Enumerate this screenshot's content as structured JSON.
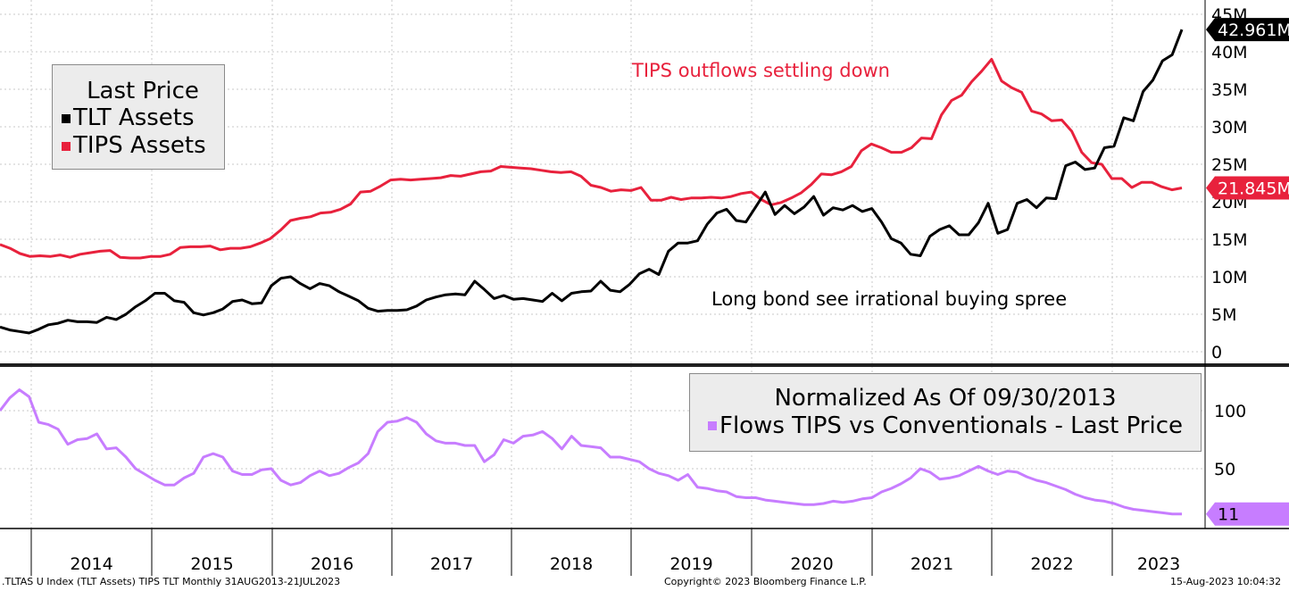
{
  "chart_data": [
    {
      "type": "line",
      "panel": "upper",
      "x_label_years": [
        "2014",
        "2015",
        "2016",
        "2017",
        "2018",
        "2019",
        "2020",
        "2021",
        "2022",
        "2023"
      ],
      "y_ticks": [
        "0",
        "5M",
        "10M",
        "15M",
        "20M",
        "25M",
        "30M",
        "35M",
        "40M",
        "45M"
      ],
      "ylim": [
        0,
        45
      ],
      "y_unit": "M",
      "legend": {
        "title": "Last Price",
        "entries": [
          "TLT Assets",
          "TIPS Assets"
        ]
      },
      "series": [
        {
          "name": "TLT Assets",
          "color": "#000000",
          "last_value_label": "42.961M",
          "values": [
            3.3,
            2.9,
            2.7,
            2.5,
            3.0,
            3.6,
            3.8,
            4.2,
            4.0,
            4.0,
            3.9,
            4.6,
            4.3,
            5.0,
            6.0,
            6.8,
            7.8,
            7.8,
            6.8,
            6.6,
            5.2,
            4.9,
            5.2,
            5.7,
            6.7,
            6.9,
            6.4,
            6.5,
            8.8,
            9.8,
            10.0,
            9.1,
            8.4,
            9.1,
            8.8,
            8.0,
            7.4,
            6.8,
            5.8,
            5.4,
            5.5,
            5.5,
            5.6,
            6.1,
            6.9,
            7.3,
            7.6,
            7.7,
            7.6,
            9.4,
            8.3,
            7.1,
            7.5,
            7.0,
            7.1,
            6.9,
            6.7,
            7.8,
            6.8,
            7.8,
            8.0,
            8.1,
            9.4,
            8.2,
            8.0,
            9.0,
            10.4,
            11.0,
            10.3,
            13.4,
            14.5,
            14.5,
            14.8,
            17.0,
            18.5,
            19.0,
            17.5,
            17.3,
            19.3,
            21.3,
            18.3,
            19.5,
            18.4,
            19.3,
            20.7,
            18.2,
            19.2,
            18.9,
            19.5,
            18.7,
            19.1,
            17.3,
            15.1,
            14.5,
            13.0,
            12.8,
            15.4,
            16.3,
            16.8,
            15.6,
            15.6,
            17.2,
            19.8,
            15.8,
            16.3,
            19.8,
            20.3,
            19.2,
            20.5,
            20.4,
            24.8,
            25.3,
            24.3,
            24.5,
            27.2,
            27.4,
            31.2,
            30.8,
            34.7,
            36.2,
            38.8,
            39.6,
            42.961
          ]
        },
        {
          "name": "TIPS Assets",
          "color": "#e8213c",
          "last_value_label": "21.845M",
          "values": [
            14.3,
            13.8,
            13.1,
            12.7,
            12.8,
            12.7,
            12.9,
            12.6,
            13.0,
            13.2,
            13.4,
            13.5,
            12.6,
            12.5,
            12.5,
            12.7,
            12.7,
            13.0,
            13.9,
            14.0,
            14.0,
            14.1,
            13.6,
            13.8,
            13.8,
            14.0,
            14.5,
            15.1,
            16.2,
            17.5,
            17.8,
            18.0,
            18.5,
            18.6,
            19.0,
            19.7,
            21.3,
            21.4,
            22.1,
            22.9,
            23.0,
            22.9,
            23.0,
            23.1,
            23.2,
            23.5,
            23.4,
            23.7,
            24.0,
            24.1,
            24.7,
            24.6,
            24.5,
            24.4,
            24.2,
            24.0,
            23.9,
            24.0,
            23.4,
            22.2,
            21.9,
            21.4,
            21.6,
            21.5,
            21.9,
            20.2,
            20.2,
            20.6,
            20.3,
            20.5,
            20.5,
            20.6,
            20.5,
            20.7,
            21.1,
            21.3,
            20.3,
            19.6,
            19.9,
            20.5,
            21.2,
            22.3,
            23.7,
            23.6,
            24.0,
            24.7,
            26.8,
            27.7,
            27.2,
            26.6,
            26.6,
            27.2,
            28.5,
            28.4,
            31.6,
            33.5,
            34.2,
            36.0,
            37.4,
            39.0,
            36.1,
            35.2,
            34.6,
            32.1,
            31.7,
            30.8,
            30.9,
            29.4,
            26.6,
            25.2,
            25.0,
            23.1,
            23.1,
            21.9,
            22.6,
            22.6,
            22.0,
            21.6,
            21.845
          ]
        }
      ],
      "annotations": [
        {
          "text": "TIPS outflows settling down",
          "color": "#e8213c"
        },
        {
          "text": "Long bond see irrational buying spree",
          "color": "#000000"
        }
      ]
    },
    {
      "type": "line",
      "panel": "lower",
      "y_ticks": [
        "50",
        "100"
      ],
      "ylim": [
        0,
        128
      ],
      "legend": {
        "title": "Normalized As Of 09/30/2013",
        "entries": [
          "Flows TIPS vs Conventionals - Last Price"
        ]
      },
      "series": [
        {
          "name": "Flows TIPS vs Conventionals - Last Price",
          "color": "#c77dff",
          "last_value_label": "11",
          "values": [
            100,
            111,
            118,
            112,
            90,
            88,
            84,
            71,
            75,
            76,
            80,
            67,
            68,
            60,
            50,
            45,
            40,
            36,
            36,
            42,
            46,
            60,
            63,
            60,
            48,
            45,
            45,
            49,
            50,
            40,
            36,
            38,
            44,
            48,
            44,
            46,
            51,
            55,
            63,
            82,
            90,
            91,
            94,
            90,
            80,
            74,
            72,
            72,
            70,
            70,
            56,
            62,
            75,
            72,
            78,
            79,
            82,
            76,
            67,
            78,
            70,
            69,
            68,
            60,
            60,
            58,
            56,
            50,
            46,
            44,
            40,
            45,
            34,
            33,
            31,
            30,
            26,
            25,
            25,
            23,
            22,
            21,
            20,
            19,
            19,
            20,
            22,
            21,
            22,
            24,
            25,
            30,
            33,
            37,
            42,
            50,
            47,
            41,
            42,
            44,
            48,
            52,
            48,
            45,
            48,
            47,
            43,
            40,
            38,
            35,
            32,
            28,
            25,
            23,
            22,
            20,
            17,
            15,
            14,
            13,
            12,
            11,
            11
          ]
        }
      ]
    }
  ],
  "footer": {
    "left": ".TLTAS U Index (TLT Assets) TIPS TLT  Monthly 31AUG2013-21JUL2023",
    "center": "Copyright© 2023 Bloomberg Finance L.P.",
    "right": "15-Aug-2023 10:04:32"
  }
}
